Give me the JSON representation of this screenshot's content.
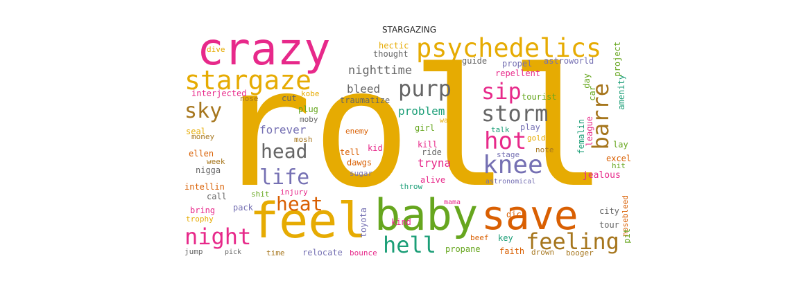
{
  "title": "STARGAZING",
  "colors": {
    "gold": "#e6ab02",
    "magenta": "#e7298a",
    "green": "#66a61e",
    "orange": "#d95f02",
    "teal": "#1b9e77",
    "purple": "#7570b3",
    "brown": "#a6761d",
    "gray": "#666666"
  },
  "words": [
    {
      "text": "roll",
      "color": "#e6ab02"
    },
    {
      "text": "crazy",
      "color": "#e7298a"
    },
    {
      "text": "feel",
      "color": "#e6ab02"
    },
    {
      "text": "baby",
      "color": "#66a61e"
    },
    {
      "text": "save",
      "color": "#d95f02"
    },
    {
      "text": "psychedelics",
      "color": "#e6ab02"
    },
    {
      "text": "stargaze",
      "color": "#e6ab02"
    },
    {
      "text": "knee",
      "color": "#7570b3"
    },
    {
      "text": "storm",
      "color": "#666666"
    },
    {
      "text": "hot",
      "color": "#e7298a"
    },
    {
      "text": "purp",
      "color": "#666666"
    },
    {
      "text": "sip",
      "color": "#e7298a"
    },
    {
      "text": "barre",
      "color": "#a6761d"
    },
    {
      "text": "sky",
      "color": "#a6761d"
    },
    {
      "text": "head",
      "color": "#666666"
    },
    {
      "text": "life",
      "color": "#7570b3"
    },
    {
      "text": "heat",
      "color": "#d95f02"
    },
    {
      "text": "night",
      "color": "#e7298a"
    },
    {
      "text": "hell",
      "color": "#1b9e77"
    },
    {
      "text": "feeling",
      "color": "#a6761d"
    },
    {
      "text": "nighttime",
      "color": "#666666"
    },
    {
      "text": "bleed",
      "color": "#666666"
    },
    {
      "text": "problem",
      "color": "#1b9e77"
    },
    {
      "text": "forever",
      "color": "#7570b3"
    },
    {
      "text": "tryna",
      "color": "#e7298a"
    },
    {
      "text": "hectic",
      "color": "#e6ab02"
    },
    {
      "text": "thought",
      "color": "#666666"
    },
    {
      "text": "guide",
      "color": "#666666"
    },
    {
      "text": "propel",
      "color": "#7570b3"
    },
    {
      "text": "astroworld",
      "color": "#7570b3"
    },
    {
      "text": "repellent",
      "color": "#e7298a"
    },
    {
      "text": "dive",
      "color": "#e6ab02"
    },
    {
      "text": "interjected",
      "color": "#e7298a"
    },
    {
      "text": "kobe",
      "color": "#e6ab02"
    },
    {
      "text": "nose",
      "color": "#a6761d"
    },
    {
      "text": "cut",
      "color": "#666666"
    },
    {
      "text": "traumatize",
      "color": "#666666"
    },
    {
      "text": "plug",
      "color": "#66a61e"
    },
    {
      "text": "moby",
      "color": "#666666"
    },
    {
      "text": "mosh",
      "color": "#a6761d"
    },
    {
      "text": "enemy",
      "color": "#d95f02"
    },
    {
      "text": "girl",
      "color": "#66a61e"
    },
    {
      "text": "kill",
      "color": "#e7298a"
    },
    {
      "text": "ride",
      "color": "#666666"
    },
    {
      "text": "tell",
      "color": "#d95f02"
    },
    {
      "text": "kid",
      "color": "#e7298a"
    },
    {
      "text": "dawgs",
      "color": "#d95f02"
    },
    {
      "text": "sugar",
      "color": "#7570b3"
    },
    {
      "text": "alive",
      "color": "#e7298a"
    },
    {
      "text": "throw",
      "color": "#1b9e77"
    },
    {
      "text": "talk",
      "color": "#1b9e77"
    },
    {
      "text": "play",
      "color": "#7570b3"
    },
    {
      "text": "gold",
      "color": "#e6ab02"
    },
    {
      "text": "stage",
      "color": "#7570b3"
    },
    {
      "text": "note",
      "color": "#a6761d"
    },
    {
      "text": "tourist",
      "color": "#66a61e"
    },
    {
      "text": "astronomical",
      "color": "#7570b3"
    },
    {
      "text": "seal",
      "color": "#e6ab02"
    },
    {
      "text": "money",
      "color": "#a6761d"
    },
    {
      "text": "ellen",
      "color": "#d95f02"
    },
    {
      "text": "week",
      "color": "#a6761d"
    },
    {
      "text": "nigga",
      "color": "#666666"
    },
    {
      "text": "intellin",
      "color": "#d95f02"
    },
    {
      "text": "call",
      "color": "#666666"
    },
    {
      "text": "shit",
      "color": "#66a61e"
    },
    {
      "text": "injury",
      "color": "#e7298a"
    },
    {
      "text": "bring",
      "color": "#e7298a"
    },
    {
      "text": "pack",
      "color": "#7570b3"
    },
    {
      "text": "trophy",
      "color": "#e6ab02"
    },
    {
      "text": "jump",
      "color": "#666666"
    },
    {
      "text": "pick",
      "color": "#666666"
    },
    {
      "text": "time",
      "color": "#a6761d"
    },
    {
      "text": "relocate",
      "color": "#7570b3"
    },
    {
      "text": "bounce",
      "color": "#e7298a"
    },
    {
      "text": "propane",
      "color": "#66a61e"
    },
    {
      "text": "beef",
      "color": "#d95f02"
    },
    {
      "text": "key",
      "color": "#1b9e77"
    },
    {
      "text": "kind",
      "color": "#e7298a"
    },
    {
      "text": "mama",
      "color": "#e7298a"
    },
    {
      "text": "dick",
      "color": "#d95f02"
    },
    {
      "text": "faith",
      "color": "#d95f02"
    },
    {
      "text": "drown",
      "color": "#a6761d"
    },
    {
      "text": "booger",
      "color": "#a6761d"
    },
    {
      "text": "city",
      "color": "#666666"
    },
    {
      "text": "tour",
      "color": "#666666"
    },
    {
      "text": "jealous",
      "color": "#e7298a"
    },
    {
      "text": "excel",
      "color": "#d95f02"
    },
    {
      "text": "hit",
      "color": "#66a61e"
    },
    {
      "text": "lay",
      "color": "#66a61e"
    },
    {
      "text": "way",
      "color": "#e6ab02"
    },
    {
      "text": "toyota",
      "color": "#7570b3"
    },
    {
      "text": "amenity",
      "color": "#1b9e77"
    },
    {
      "text": "project",
      "color": "#66a61e"
    },
    {
      "text": "day",
      "color": "#66a61e"
    },
    {
      "text": "car",
      "color": "#66a61e"
    },
    {
      "text": "league",
      "color": "#e7298a"
    },
    {
      "text": "femalin",
      "color": "#1b9e77"
    },
    {
      "text": "nosebleed",
      "color": "#d95f02"
    },
    {
      "text": "pit",
      "color": "#66a61e"
    }
  ]
}
